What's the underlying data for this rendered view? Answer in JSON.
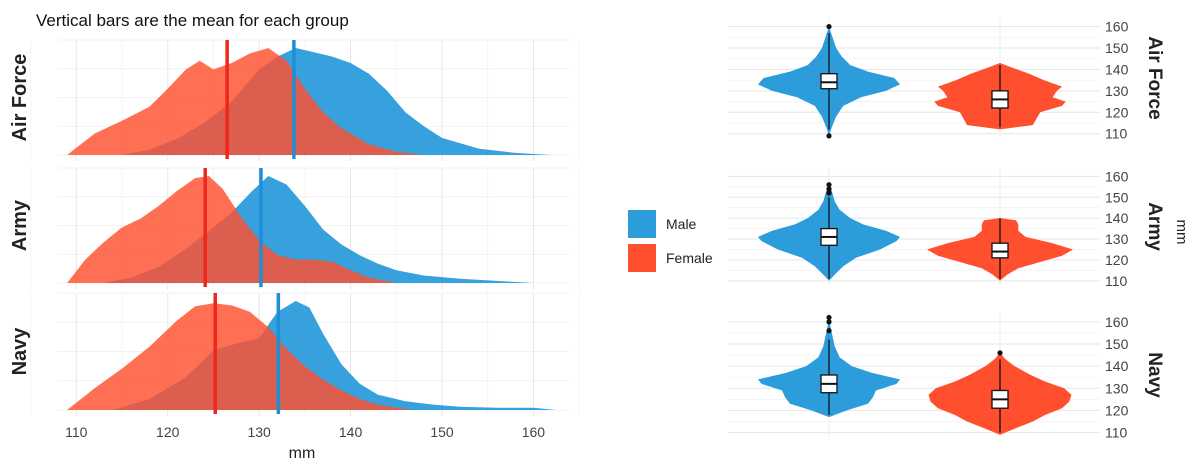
{
  "chart_data": [
    {
      "type": "area",
      "title": "Vertical bars are the mean for each group",
      "xlabel": "mm",
      "xlim": [
        108,
        164
      ],
      "x_ticks": [
        "110",
        "120",
        "130",
        "140",
        "150",
        "160"
      ],
      "x_tick_values": [
        110,
        120,
        130,
        140,
        150,
        160
      ],
      "colors": {
        "Male": "#2C9CDB",
        "Female": "#FF4F2E",
        "MeanMale": "#1E8FD6",
        "MeanFemale": "#F0261A"
      },
      "panels": [
        {
          "label": "Air Force",
          "series": [
            {
              "name": "Male",
              "mean": 133.8,
              "x": [
                115,
                118,
                121,
                124,
                127,
                130,
                132,
                134,
                136,
                138,
                140,
                142,
                144,
                146,
                148,
                150,
                154,
                158,
                162
              ],
              "y": [
                0.0,
                0.05,
                0.15,
                0.3,
                0.5,
                0.8,
                0.92,
                1.0,
                0.96,
                0.92,
                0.86,
                0.76,
                0.6,
                0.4,
                0.27,
                0.16,
                0.06,
                0.02,
                0.0
              ]
            },
            {
              "name": "Female",
              "mean": 126.5,
              "x": [
                109,
                112,
                115,
                118,
                120,
                122,
                123.5,
                125,
                127,
                129,
                131,
                133,
                135,
                137,
                139,
                142,
                145,
                148
              ],
              "y": [
                0.0,
                0.2,
                0.32,
                0.45,
                0.62,
                0.8,
                0.88,
                0.8,
                0.86,
                0.95,
                1.0,
                0.88,
                0.62,
                0.4,
                0.25,
                0.1,
                0.03,
                0.0
              ]
            }
          ]
        },
        {
          "label": "Army",
          "series": [
            {
              "name": "Male",
              "mean": 130.2,
              "x": [
                113,
                116,
                119,
                122,
                125,
                127,
                129,
                131,
                133,
                135,
                137,
                139,
                141,
                143,
                145,
                148,
                152,
                156,
                160
              ],
              "y": [
                0.0,
                0.05,
                0.15,
                0.32,
                0.52,
                0.66,
                0.84,
                1.0,
                0.92,
                0.72,
                0.5,
                0.36,
                0.26,
                0.18,
                0.12,
                0.07,
                0.04,
                0.02,
                0.0
              ]
            },
            {
              "name": "Female",
              "mean": 124.1,
              "x": [
                109,
                111,
                113,
                115,
                117,
                119,
                121,
                123,
                124.5,
                126,
                128,
                130,
                132,
                134,
                136,
                138,
                140,
                142,
                145
              ],
              "y": [
                0.0,
                0.22,
                0.38,
                0.52,
                0.6,
                0.72,
                0.86,
                0.98,
                1.0,
                0.88,
                0.62,
                0.4,
                0.26,
                0.22,
                0.22,
                0.2,
                0.12,
                0.05,
                0.0
              ]
            }
          ]
        },
        {
          "label": "Navy",
          "series": [
            {
              "name": "Male",
              "mean": 132.1,
              "x": [
                114,
                118,
                122,
                125,
                128,
                130,
                132,
                134,
                135.5,
                137,
                139,
                141,
                143,
                146,
                149,
                152,
                156,
                160,
                162.5
              ],
              "y": [
                0.0,
                0.1,
                0.3,
                0.55,
                0.62,
                0.66,
                0.9,
                1.0,
                0.94,
                0.7,
                0.42,
                0.24,
                0.14,
                0.08,
                0.05,
                0.03,
                0.02,
                0.02,
                0.0
              ]
            },
            {
              "name": "Female",
              "mean": 125.2,
              "x": [
                109,
                112,
                115,
                118,
                121,
                123,
                125,
                127,
                129,
                131,
                133,
                135,
                137,
                139,
                141,
                143,
                145,
                147
              ],
              "y": [
                0.0,
                0.2,
                0.38,
                0.58,
                0.82,
                0.95,
                0.98,
                0.96,
                0.9,
                0.76,
                0.56,
                0.4,
                0.28,
                0.18,
                0.1,
                0.05,
                0.02,
                0.0
              ]
            }
          ]
        }
      ]
    },
    {
      "type": "violin",
      "ylabel": "mm",
      "ylim": [
        108,
        164
      ],
      "y_ticks": [
        "110",
        "120",
        "130",
        "140",
        "150",
        "160"
      ],
      "y_tick_values": [
        110,
        120,
        130,
        140,
        150,
        160
      ],
      "legend": {
        "position": "left",
        "entries": [
          "Male",
          "Female"
        ]
      },
      "panels": [
        {
          "label": "Air Force",
          "groups": [
            {
              "name": "Male",
              "color": "#2C9CDB",
              "box": {
                "q1": 131,
                "median": 134,
                "q3": 138,
                "whisker_low": 112,
                "whisker_high": 157
              },
              "outliers": [
                109,
                160
              ],
              "profile": [
                [
                  109,
                  0.0
                ],
                [
                  113,
                  0.04
                ],
                [
                  118,
                  0.1
                ],
                [
                  123,
                  0.2
                ],
                [
                  127,
                  0.45
                ],
                [
                  130,
                  0.8
                ],
                [
                  133,
                  1.0
                ],
                [
                  136,
                  0.92
                ],
                [
                  139,
                  0.55
                ],
                [
                  142,
                  0.3
                ],
                [
                  146,
                  0.18
                ],
                [
                  150,
                  0.1
                ],
                [
                  155,
                  0.05
                ],
                [
                  160,
                  0.0
                ]
              ]
            },
            {
              "name": "Female",
              "color": "#FF4F2E",
              "box": {
                "q1": 122,
                "median": 126,
                "q3": 130,
                "whisker_low": 113,
                "whisker_high": 142
              },
              "outliers": [],
              "profile": [
                [
                  112,
                  0.0
                ],
                [
                  114,
                  0.45
                ],
                [
                  117,
                  0.5
                ],
                [
                  120,
                  0.55
                ],
                [
                  123,
                  0.85
                ],
                [
                  125,
                  0.9
                ],
                [
                  127,
                  0.72
                ],
                [
                  130,
                  0.78
                ],
                [
                  132,
                  0.85
                ],
                [
                  135,
                  0.6
                ],
                [
                  138,
                  0.4
                ],
                [
                  141,
                  0.15
                ],
                [
                  143,
                  0.0
                ]
              ]
            }
          ]
        },
        {
          "label": "Army",
          "groups": [
            {
              "name": "Male",
              "color": "#2C9CDB",
              "box": {
                "q1": 127,
                "median": 131,
                "q3": 135,
                "whisker_low": 111,
                "whisker_high": 150
              },
              "outliers": [
                152,
                154,
                156
              ],
              "profile": [
                [
                  110,
                  0.0
                ],
                [
                  113,
                  0.08
                ],
                [
                  117,
                  0.2
                ],
                [
                  121,
                  0.38
                ],
                [
                  125,
                  0.72
                ],
                [
                  129,
                  0.95
                ],
                [
                  131,
                  1.0
                ],
                [
                  134,
                  0.8
                ],
                [
                  137,
                  0.48
                ],
                [
                  140,
                  0.3
                ],
                [
                  144,
                  0.15
                ],
                [
                  148,
                  0.08
                ],
                [
                  153,
                  0.04
                ],
                [
                  157,
                  0.0
                ]
              ]
            },
            {
              "name": "Female",
              "color": "#FF4F2E",
              "box": {
                "q1": 121,
                "median": 124,
                "q3": 128,
                "whisker_low": 111,
                "whisker_high": 140
              },
              "outliers": [],
              "profile": [
                [
                  110,
                  0.0
                ],
                [
                  113,
                  0.1
                ],
                [
                  116,
                  0.25
                ],
                [
                  119,
                  0.55
                ],
                [
                  122,
                  0.85
                ],
                [
                  125,
                  1.0
                ],
                [
                  128,
                  0.72
                ],
                [
                  131,
                  0.35
                ],
                [
                  134,
                  0.25
                ],
                [
                  137,
                  0.25
                ],
                [
                  139,
                  0.22
                ],
                [
                  140,
                  0.0
                ]
              ]
            }
          ]
        },
        {
          "label": "Navy",
          "groups": [
            {
              "name": "Male",
              "color": "#2C9CDB",
              "box": {
                "q1": 128,
                "median": 132,
                "q3": 136,
                "whisker_low": 118,
                "whisker_high": 152
              },
              "outliers": [
                156,
                160,
                162
              ],
              "profile": [
                [
                  117,
                  0.0
                ],
                [
                  120,
                  0.25
                ],
                [
                  123,
                  0.55
                ],
                [
                  126,
                  0.62
                ],
                [
                  129,
                  0.66
                ],
                [
                  132,
                  0.95
                ],
                [
                  134,
                  1.0
                ],
                [
                  137,
                  0.6
                ],
                [
                  140,
                  0.32
                ],
                [
                  144,
                  0.15
                ],
                [
                  149,
                  0.08
                ],
                [
                  155,
                  0.04
                ],
                [
                  161,
                  0.0
                ]
              ]
            },
            {
              "name": "Female",
              "color": "#FF4F2E",
              "box": {
                "q1": 121,
                "median": 125,
                "q3": 129,
                "whisker_low": 110,
                "whisker_high": 143
              },
              "outliers": [
                146
              ],
              "profile": [
                [
                  109,
                  0.0
                ],
                [
                  112,
                  0.22
                ],
                [
                  115,
                  0.45
                ],
                [
                  118,
                  0.62
                ],
                [
                  121,
                  0.85
                ],
                [
                  124,
                  0.95
                ],
                [
                  127,
                  0.98
                ],
                [
                  130,
                  0.88
                ],
                [
                  133,
                  0.62
                ],
                [
                  136,
                  0.42
                ],
                [
                  140,
                  0.2
                ],
                [
                  143,
                  0.08
                ],
                [
                  146,
                  0.0
                ]
              ]
            }
          ]
        }
      ]
    }
  ]
}
